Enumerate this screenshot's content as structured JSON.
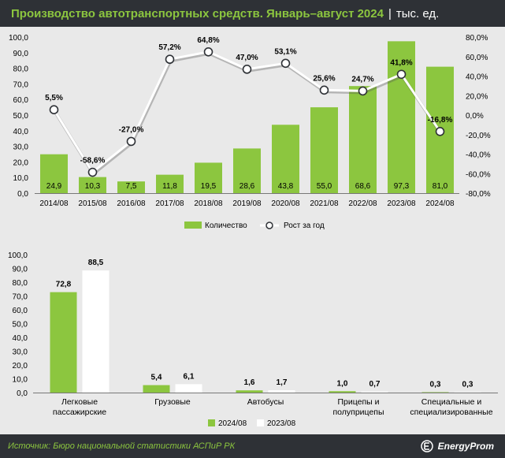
{
  "header": {
    "title": "Производство автотранспортных средств. Январь–август 2024",
    "separator": "|",
    "unit": "тыс. ед."
  },
  "footer": {
    "source": "Источник: Бюро национальной статистики АСПиР РК",
    "brand": "EnergyProm"
  },
  "colors": {
    "green": "#8cc63f",
    "white": "#ffffff",
    "dark": "#2e3136",
    "line": "#ffffff",
    "background": "#e9e9e9"
  },
  "chart_data": [
    {
      "type": "bar",
      "categories": [
        "2014/08",
        "2015/08",
        "2016/08",
        "2017/08",
        "2018/08",
        "2019/08",
        "2020/08",
        "2021/08",
        "2022/08",
        "2023/08",
        "2024/08"
      ],
      "series": [
        {
          "name": "Количество",
          "type": "bar",
          "axis": "left",
          "values": [
            24.9,
            10.3,
            7.5,
            11.8,
            19.5,
            28.6,
            43.8,
            55.0,
            68.6,
            97.3,
            81.0
          ],
          "labels": [
            "24,9",
            "10,3",
            "7,5",
            "11,8",
            "19,5",
            "28,6",
            "43,8",
            "55,0",
            "68,6",
            "97,3",
            "81,0"
          ]
        },
        {
          "name": "Рост за год",
          "type": "line",
          "axis": "right",
          "values": [
            5.5,
            -58.6,
            -27.0,
            57.2,
            64.8,
            47.0,
            53.1,
            25.6,
            24.7,
            41.8,
            -16.8
          ],
          "labels": [
            "5,5%",
            "-58,6%",
            "-27,0%",
            "57,2%",
            "64,8%",
            "47,0%",
            "53,1%",
            "25,6%",
            "24,7%",
            "41,8%",
            "-16,8%"
          ]
        }
      ],
      "ylim": [
        0,
        100
      ],
      "y_ticks": [
        "0,0",
        "10,0",
        "20,0",
        "30,0",
        "40,0",
        "50,0",
        "60,0",
        "70,0",
        "80,0",
        "90,0",
        "100,0"
      ],
      "y2lim": [
        -80,
        80
      ],
      "y2_ticks": [
        "-80,0%",
        "-60,0%",
        "-40,0%",
        "-20,0%",
        "0,0%",
        "20,0%",
        "40,0%",
        "60,0%",
        "80,0%"
      ],
      "grid": false,
      "legend": "bottom"
    },
    {
      "type": "bar",
      "categories": [
        [
          "Легковые",
          "пассажирские"
        ],
        [
          "Грузовые"
        ],
        [
          "Автобусы"
        ],
        [
          "Прицепы и",
          "полуприцепы"
        ],
        [
          "Специальные и",
          "специализированные"
        ]
      ],
      "series": [
        {
          "name": "2024/08",
          "values": [
            72.8,
            5.4,
            1.6,
            1.0,
            0.3
          ],
          "labels": [
            "72,8",
            "5,4",
            "1,6",
            "1,0",
            "0,3"
          ]
        },
        {
          "name": "2023/08",
          "values": [
            88.5,
            6.1,
            1.7,
            0.7,
            0.3
          ],
          "labels": [
            "88,5",
            "6,1",
            "1,7",
            "0,7",
            "0,3"
          ]
        }
      ],
      "ylim": [
        0,
        100
      ],
      "y_ticks": [
        "0,0",
        "10,0",
        "20,0",
        "30,0",
        "40,0",
        "50,0",
        "60,0",
        "70,0",
        "80,0",
        "90,0",
        "100,0"
      ],
      "grid": false,
      "legend": "bottom"
    }
  ]
}
